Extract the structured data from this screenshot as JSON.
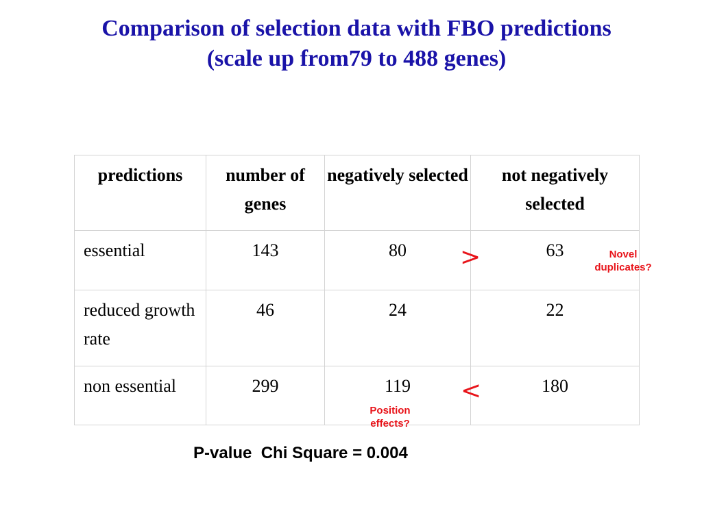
{
  "title": {
    "line1": "Comparison of selection data with FBO predictions",
    "line2": "(scale up from79 to 488 genes)"
  },
  "table": {
    "headers": {
      "predictions": "predictions",
      "number": "number of genes",
      "negative": "negatively selected",
      "not_negative": "not negatively selected"
    },
    "rows": [
      {
        "prediction": "essential",
        "number": "143",
        "negative": "80",
        "not_negative": "63"
      },
      {
        "prediction": "reduced growth rate",
        "number": "46",
        "negative": "24",
        "not_negative": "22"
      },
      {
        "prediction": "non essential",
        "number": "299",
        "negative": "119",
        "not_negative": "180"
      }
    ]
  },
  "annotations": {
    "greater_sign": ">",
    "less_sign": "<",
    "novel_duplicates": "Novel duplicates?",
    "position_effects": "Position effects?"
  },
  "footer": {
    "pvalue": "P-value  Chi Square = 0.004"
  },
  "colors": {
    "title": "#1a13a8",
    "annotation": "#e8141a",
    "border": "#d3d3d3"
  }
}
